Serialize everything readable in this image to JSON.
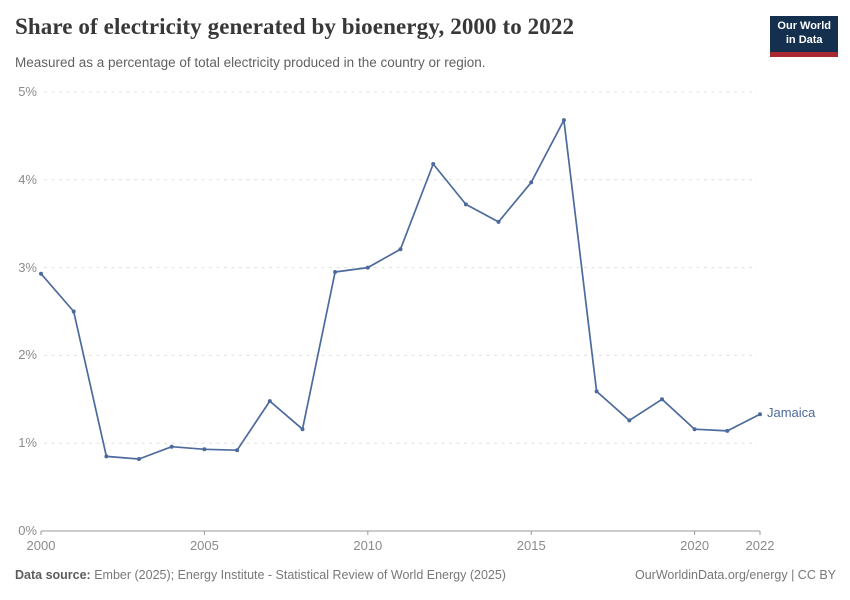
{
  "header": {
    "title": "Share of electricity generated by bioenergy, 2000 to 2022",
    "subtitle": "Measured as a percentage of total electricity produced in the country or region.",
    "logo": {
      "line1": "Our World",
      "line2": "in Data"
    }
  },
  "chart_data": {
    "type": "line",
    "title": "Share of electricity generated by bioenergy, 2000 to 2022",
    "xlabel": "",
    "ylabel": "",
    "x": [
      2000,
      2001,
      2002,
      2003,
      2004,
      2005,
      2006,
      2007,
      2008,
      2009,
      2010,
      2011,
      2012,
      2013,
      2014,
      2015,
      2016,
      2017,
      2018,
      2019,
      2020,
      2021,
      2022
    ],
    "series": [
      {
        "name": "Jamaica",
        "color": "#4c6a9c",
        "values": [
          2.93,
          2.5,
          0.85,
          0.82,
          0.96,
          0.93,
          0.92,
          1.48,
          1.16,
          2.95,
          3.0,
          3.21,
          4.18,
          3.72,
          3.52,
          3.97,
          4.68,
          1.59,
          1.26,
          1.5,
          1.16,
          1.14,
          1.33
        ]
      }
    ],
    "xlim": [
      2000,
      2022
    ],
    "ylim": [
      0,
      5
    ],
    "xticks": [
      2000,
      2005,
      2010,
      2015,
      2020,
      2022
    ],
    "yticks": [
      "0%",
      "1%",
      "2%",
      "3%",
      "4%",
      "5%"
    ],
    "grid": "horizontal dashed",
    "legend_position": "end-of-line label"
  },
  "footer": {
    "datasource_label": "Data source:",
    "datasource_text": "Ember (2025); Energy Institute - Statistical Review of World Energy (2025)",
    "right": "OurWorldinData.org/energy | CC BY"
  },
  "colors": {
    "line": "#4c6a9c",
    "grid": "#e0e0e0",
    "axis": "#999999",
    "logo_bg": "#15304e",
    "logo_stripe": "#a82931"
  }
}
